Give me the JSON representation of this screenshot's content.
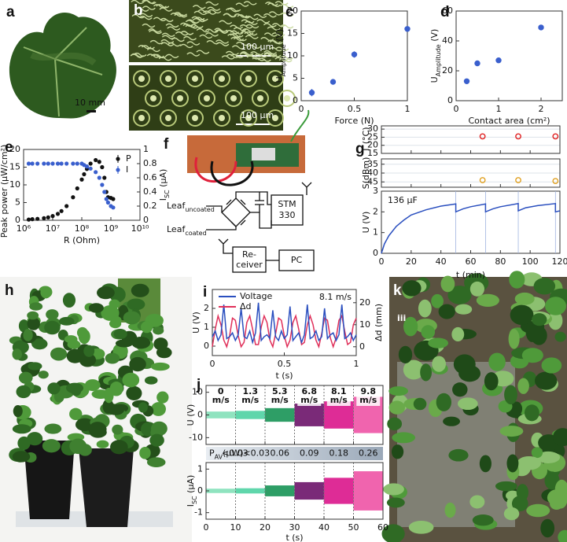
{
  "panels": {
    "a": {
      "label": "a",
      "scale_bar": "10 mm"
    },
    "b": {
      "label": "b",
      "scale_bars": [
        "100 µm",
        "100 µm"
      ]
    },
    "f": {
      "label": "f",
      "diagram": {
        "leaf_uncoated": [
          "Leaf",
          "uncoated"
        ],
        "leaf_coated": [
          "Leaf",
          "coated"
        ],
        "module": [
          "STM",
          "330"
        ],
        "receiver": [
          "Re-",
          "ceiver"
        ],
        "pc": "PC"
      }
    },
    "h": {
      "label": "h"
    },
    "k": {
      "label": "k",
      "inset": "iii"
    }
  },
  "chart_data": [
    {
      "type": "scatter",
      "label": "c",
      "x": [
        0.1,
        0.3,
        0.5,
        1.0
      ],
      "values": [
        1.8,
        4.2,
        10.3,
        16
      ],
      "errors": [
        0.8,
        0.5,
        0.7,
        0.3
      ],
      "color": "#3a5fcd",
      "xlim": [
        0,
        1
      ],
      "xticks": [
        0,
        0.5,
        1
      ],
      "ylim": [
        0,
        20
      ],
      "yticks": [
        0,
        5,
        10,
        15,
        20
      ],
      "xlabel": "Force (N)",
      "ylabel": [
        "U",
        "Amplitude",
        " (V)"
      ]
    },
    {
      "type": "scatter",
      "label": "d",
      "x": [
        0.25,
        0.5,
        1.0,
        2.0
      ],
      "values": [
        13,
        25,
        27,
        49
      ],
      "errors": [
        1,
        1.2,
        1,
        0.8
      ],
      "color": "#3a5fcd",
      "xlim": [
        0,
        2.5
      ],
      "xticks": [
        0,
        1,
        2
      ],
      "ylim": [
        0,
        60
      ],
      "yticks": [
        0,
        20,
        40,
        60
      ],
      "xlabel": "Contact area (cm²)",
      "ylabel": [
        "U",
        "Amplitude",
        " (V)"
      ]
    },
    {
      "type": "dual_scatter",
      "label": "e",
      "xscale": "log",
      "legend": "upper right",
      "x": [
        1500000,
        2000000,
        3000000,
        5000000,
        7000000,
        10000000,
        15000000,
        20000000,
        30000000,
        50000000,
        70000000,
        100000000,
        120000000,
        150000000,
        200000000,
        300000000,
        400000000,
        500000000,
        600000000,
        700000000,
        800000000,
        1000000000,
        1200000000
      ],
      "series": [
        {
          "name": "P",
          "color": "#111111",
          "values": [
            0.2,
            0.3,
            0.4,
            0.6,
            0.8,
            1.2,
            1.8,
            2.6,
            4,
            6.5,
            9,
            11.5,
            13,
            14.5,
            16,
            17,
            16.5,
            15,
            12,
            8,
            6.5,
            6.3,
            6
          ]
        },
        {
          "name": "I",
          "color": "#3a5fcd",
          "axis": "y2",
          "values": [
            0.8,
            0.8,
            0.8,
            0.8,
            0.8,
            0.8,
            0.8,
            0.8,
            0.8,
            0.8,
            0.8,
            0.8,
            0.78,
            0.76,
            0.73,
            0.68,
            0.6,
            0.5,
            0.4,
            0.3,
            0.25,
            0.2,
            0.18
          ]
        }
      ],
      "xlim": [
        1000000,
        10000000000
      ],
      "xticks": [
        {
          "value": 1000000,
          "label": "10⁶"
        },
        {
          "value": 10000000,
          "label": "10⁷"
        },
        {
          "value": 100000000,
          "label": "10⁸"
        },
        {
          "value": 1000000000,
          "label": "10⁹"
        },
        {
          "value": 10000000000,
          "label": "10¹⁰"
        }
      ],
      "ylim": [
        0,
        20
      ],
      "yticks": [
        0,
        5,
        10,
        15,
        20
      ],
      "y2lim": [
        0,
        1
      ],
      "y2ticks": [
        0,
        0.2,
        0.4,
        0.6,
        0.8,
        1
      ],
      "xlabel": "R (Ohm)",
      "ylabel": "Peak power (µW/cm²)",
      "y2label": [
        "I",
        "SC",
        " (µA)"
      ]
    },
    {
      "type": "stacked",
      "label": "g",
      "xlim": [
        0,
        120
      ],
      "xticks": [
        0,
        20,
        40,
        60,
        80,
        100,
        120
      ],
      "xlabel": "t (min)",
      "subplots": [
        {
          "type": "scatter",
          "ylabel": "T (°C)",
          "x": [
            68,
            92,
            117
          ],
          "values": [
            25.5,
            25.5,
            25.5
          ],
          "color": "#e02020",
          "ylim": [
            15,
            32
          ],
          "yticks": [
            15,
            20,
            25,
            30
          ],
          "grid": true
        },
        {
          "type": "scatter",
          "ylabel": "S(dBm)",
          "x": [
            68,
            92,
            117
          ],
          "values": [
            -44,
            -44,
            -44.5
          ],
          "color": "#e0a020",
          "ylim": [
            -48,
            -32
          ],
          "yticks": [
            -45,
            -40,
            -35
          ],
          "grid": true
        },
        {
          "type": "line",
          "ylabel": "U (V)",
          "annotation": "136 µF",
          "color": "#2a4fbf",
          "markers_x": [
            50,
            70,
            92,
            117
          ],
          "x": [
            0,
            2,
            5,
            10,
            15,
            20,
            30,
            40,
            50,
            50,
            55,
            60,
            70,
            70,
            75,
            80,
            92,
            92,
            97,
            105,
            117,
            117,
            120
          ],
          "values": [
            0,
            0.45,
            0.85,
            1.3,
            1.6,
            1.85,
            2.1,
            2.28,
            2.38,
            2.0,
            2.15,
            2.25,
            2.38,
            2.0,
            2.15,
            2.25,
            2.4,
            2.05,
            2.2,
            2.3,
            2.4,
            2.0,
            2.05
          ],
          "ylim": [
            0,
            3
          ],
          "yticks": [
            0,
            1,
            2,
            3
          ]
        }
      ]
    },
    {
      "type": "line",
      "label": "i",
      "annotation": "8.1 m/s",
      "legend": "upper left",
      "x": [
        0,
        0.02,
        0.04,
        0.06,
        0.08,
        0.1,
        0.12,
        0.14,
        0.16,
        0.18,
        0.2,
        0.22,
        0.24,
        0.26,
        0.28,
        0.3,
        0.32,
        0.34,
        0.36,
        0.38,
        0.4,
        0.42,
        0.44,
        0.46,
        0.48,
        0.5,
        0.52,
        0.54,
        0.56,
        0.58,
        0.6,
        0.62,
        0.64,
        0.66,
        0.68,
        0.7,
        0.72,
        0.74,
        0.76,
        0.78,
        0.8,
        0.82,
        0.84,
        0.86,
        0.88,
        0.9,
        0.92,
        0.94,
        0.96,
        0.98,
        1.0
      ],
      "series": [
        {
          "name": "Voltage",
          "color": "#2a4fbf",
          "values": [
            0.5,
            0.8,
            0.3,
            0.6,
            2.2,
            0.4,
            0.5,
            0.7,
            0.3,
            0.6,
            2.0,
            0.5,
            0.4,
            0.8,
            0.2,
            0.7,
            2.3,
            0.3,
            0.5,
            0.6,
            0.4,
            1.9,
            0.5,
            0.3,
            0.8,
            0.4,
            0.6,
            2.1,
            0.3,
            0.5,
            0.7,
            0.2,
            0.6,
            2.2,
            0.4,
            0.5,
            0.8,
            0.3,
            0.5,
            2.0,
            0.4,
            0.6,
            0.7,
            0.3,
            0.6,
            2.2,
            0.4,
            0.5,
            0.7,
            0.3,
            0.6
          ]
        },
        {
          "name": "Δd",
          "color": "#e0305a",
          "axis": "y2",
          "values": [
            0,
            8,
            14,
            10,
            3,
            0,
            5,
            13,
            12,
            5,
            0,
            2,
            11,
            14,
            8,
            1,
            1,
            9,
            14,
            11,
            3,
            0,
            6,
            13,
            12,
            5,
            0,
            3,
            11,
            14,
            8,
            1,
            2,
            10,
            14,
            10,
            3,
            0,
            6,
            13,
            12,
            4,
            0,
            4,
            12,
            14,
            7,
            1,
            2,
            10,
            13
          ]
        }
      ],
      "xlim": [
        0,
        1
      ],
      "xticks": [
        0,
        0.5,
        1
      ],
      "ylim": [
        -0.5,
        3
      ],
      "yticks": [
        0,
        1,
        2
      ],
      "y2lim": [
        -4,
        26
      ],
      "y2ticks": [
        0,
        10,
        20
      ],
      "xlabel": "t (s)",
      "ylabel": "U (V)",
      "y2label": "Δd (mm)"
    },
    {
      "type": "bands",
      "label": "j",
      "xlim": [
        0,
        60
      ],
      "xticks": [
        0,
        10,
        20,
        30,
        40,
        50,
        60
      ],
      "xlabel": "t (s)",
      "speed_unit": "m/s",
      "p_av_label": [
        "P",
        "AV",
        "(µW)"
      ],
      "ylim": [
        -13,
        13
      ],
      "yticks": [
        -10,
        0,
        10
      ],
      "ylabel": "U (V)",
      "y2lim": [
        -1.3,
        1.3
      ],
      "y2ticks": [
        -1,
        0,
        1
      ],
      "y2label": [
        "I",
        "SC",
        " (µA)"
      ],
      "segments": [
        {
          "start": 0,
          "end": 10,
          "speed": "0",
          "color": "#8fe3bf",
          "u_amp": 1.5,
          "i_amp": 0.1,
          "p_av": "<0.03"
        },
        {
          "start": 10,
          "end": 20,
          "speed": "1.3",
          "color": "#5fd6ab",
          "u_amp": 1.8,
          "i_amp": 0.12,
          "p_av": "<0.03"
        },
        {
          "start": 20,
          "end": 30,
          "speed": "5.3",
          "color": "#2e9e66",
          "u_amp": 3,
          "i_amp": 0.25,
          "p_av": "0.06"
        },
        {
          "start": 30,
          "end": 40,
          "speed": "6.8",
          "color": "#7a2a78",
          "u_amp": 5,
          "i_amp": 0.4,
          "p_av": "0.09"
        },
        {
          "start": 40,
          "end": 50,
          "speed": "8.1",
          "color": "#de2c96",
          "u_amp": 6,
          "i_amp": 0.6,
          "p_av": "0.18"
        },
        {
          "start": 50,
          "end": 60,
          "speed": "9.8",
          "color": "#f064ae",
          "u_amp": 8,
          "i_amp": 0.9,
          "p_av": "0.26"
        }
      ]
    }
  ]
}
